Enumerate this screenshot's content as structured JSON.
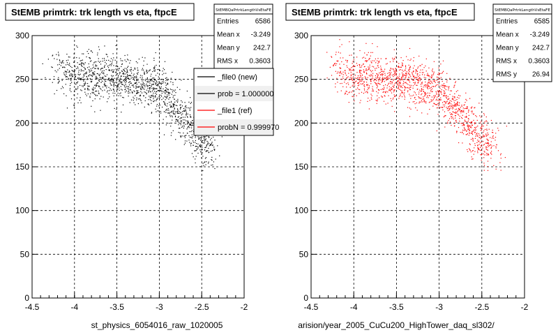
{
  "chart_data": [
    {
      "type": "scatter",
      "title": "StEMB primtrk: trk length vs eta, ftpcE",
      "xlabel": "st_physics_6054016_raw_1020005",
      "ylabel": "",
      "xlim": [
        -4.5,
        -2
      ],
      "ylim": [
        0,
        300
      ],
      "x_ticks": [
        "-4.5",
        "-4",
        "-3.5",
        "-3",
        "-2.5",
        "-2"
      ],
      "y_ticks": [
        "0",
        "50",
        "100",
        "150",
        "200",
        "250",
        "300"
      ],
      "grid": true,
      "marker_color": "#000000",
      "series": [
        {
          "x": [
            -4.2,
            -4.1,
            -4.0,
            -3.95,
            -3.9,
            -3.85,
            -3.8,
            -3.75,
            -3.7,
            -3.65,
            -3.6,
            -3.55,
            -3.5,
            -3.45,
            -3.4,
            -3.35,
            -3.3,
            -3.25,
            -3.2,
            -3.15,
            -3.1,
            -3.05,
            -3.0,
            -2.95,
            -2.9,
            -2.85,
            -2.8,
            -2.75,
            -2.7,
            -2.65,
            -2.6,
            -2.55,
            -2.5,
            -2.45,
            -2.4
          ],
          "y": [
            262,
            258,
            255,
            250,
            258,
            262,
            245,
            255,
            250,
            258,
            245,
            252,
            248,
            255,
            250,
            246,
            252,
            245,
            240,
            250,
            238,
            245,
            232,
            238,
            228,
            222,
            215,
            210,
            205,
            198,
            192,
            185,
            180,
            178,
            172
          ]
        }
      ],
      "stats": {
        "name": "StEMBQaPrtrkLengthVsEtaFE",
        "rows": [
          {
            "label": "Entries",
            "value": "6586"
          },
          {
            "label": "Mean x",
            "value": "-3.249"
          },
          {
            "label": "Mean y",
            "value": "242.7"
          },
          {
            "label": "RMS x",
            "value": "0.3603"
          }
        ]
      },
      "legend": {
        "placement": "top-right",
        "entries": [
          {
            "label": "_file0 (new)",
            "color": "#000000"
          },
          {
            "label": "prob = 1.000000",
            "color": "#000000"
          },
          {
            "label": "_file1 (ref)",
            "color": "#ff0000"
          },
          {
            "label": "probN = 0.999970",
            "color": "#ff0000"
          }
        ]
      }
    },
    {
      "type": "scatter",
      "title": "StEMB primtrk: trk length vs eta, ftpcE",
      "xlabel": "arision/year_2005_CuCu200_HighTower_daq_sl302/",
      "ylabel": "",
      "xlim": [
        -4.5,
        -2
      ],
      "ylim": [
        0,
        300
      ],
      "x_ticks": [
        "-4.5",
        "-4",
        "-3.5",
        "-3",
        "-2.5",
        "-2"
      ],
      "y_ticks": [
        "0",
        "50",
        "100",
        "150",
        "200",
        "250",
        "300"
      ],
      "grid": true,
      "marker_color": "#ff0000",
      "series": [
        {
          "x": [
            -4.2,
            -4.1,
            -4.0,
            -3.95,
            -3.9,
            -3.85,
            -3.8,
            -3.75,
            -3.7,
            -3.65,
            -3.6,
            -3.55,
            -3.5,
            -3.45,
            -3.4,
            -3.35,
            -3.3,
            -3.25,
            -3.2,
            -3.15,
            -3.1,
            -3.05,
            -3.0,
            -2.95,
            -2.9,
            -2.85,
            -2.8,
            -2.75,
            -2.7,
            -2.65,
            -2.6,
            -2.55,
            -2.5,
            -2.45,
            -2.4
          ],
          "y": [
            262,
            258,
            255,
            250,
            258,
            262,
            245,
            255,
            250,
            258,
            245,
            252,
            248,
            255,
            250,
            246,
            252,
            245,
            240,
            250,
            238,
            245,
            232,
            238,
            228,
            222,
            215,
            210,
            205,
            198,
            192,
            185,
            180,
            178,
            172
          ]
        }
      ],
      "stats": {
        "name": "StEMBQaPrtrkLengthVsEtaFE",
        "rows": [
          {
            "label": "Entries",
            "value": "6585"
          },
          {
            "label": "Mean x",
            "value": "-3.249"
          },
          {
            "label": "Mean y",
            "value": "242.7"
          },
          {
            "label": "RMS x",
            "value": "0.3603"
          },
          {
            "label": "RMS y",
            "value": "26.94"
          }
        ]
      }
    }
  ]
}
